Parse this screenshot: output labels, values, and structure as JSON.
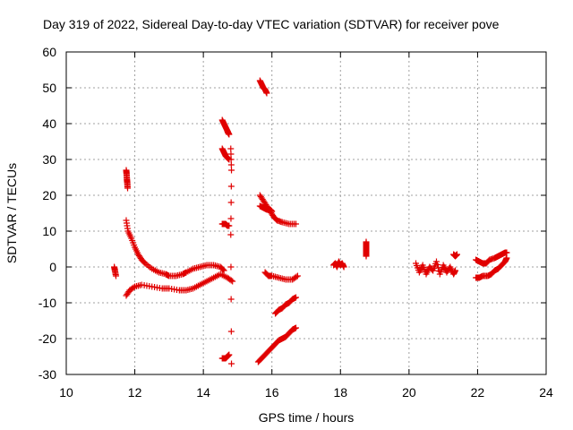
{
  "chart_data": {
    "type": "scatter",
    "title": "Day 319 of 2022, Sidereal Day-to-day VTEC variation (SDTVAR) for receiver pove",
    "xlabel": "GPS time / hours",
    "ylabel": "SDTVAR / TECUs",
    "xlim": [
      10,
      24
    ],
    "ylim": [
      -30,
      60
    ],
    "x_ticks": [
      10,
      12,
      14,
      16,
      18,
      20,
      22,
      24
    ],
    "y_ticks": [
      -30,
      -20,
      -10,
      0,
      10,
      20,
      30,
      40,
      50,
      60
    ],
    "grid": true,
    "marker": "plus",
    "color": "#e00000",
    "segments": [
      {
        "name": "isolated-11.4",
        "x": [
          11.4,
          11.42,
          11.45
        ],
        "y": [
          0,
          -1,
          -2.5
        ]
      },
      {
        "name": "outlier-11.75",
        "x": [
          11.75,
          11.76,
          11.77,
          11.78,
          11.79
        ],
        "y": [
          27,
          26,
          24.5,
          23.5,
          22
        ]
      },
      {
        "name": "upper-arc-12-15",
        "x": [
          11.75,
          11.8,
          11.9,
          12.0,
          12.1,
          12.2,
          12.3,
          12.5,
          12.7,
          12.9,
          13.0,
          13.2,
          13.4,
          13.5,
          13.7,
          13.9,
          14.1,
          14.3,
          14.5,
          14.6
        ],
        "y": [
          13,
          10,
          8,
          5.5,
          3.5,
          2,
          1,
          -0.5,
          -1.5,
          -2,
          -2.5,
          -2.5,
          -2,
          -1.5,
          -0.5,
          0,
          0.5,
          0.5,
          0,
          -1
        ]
      },
      {
        "name": "lower-arc-12-15",
        "x": [
          11.75,
          11.85,
          12.0,
          12.2,
          12.5,
          12.8,
          13.0,
          13.3,
          13.5,
          13.7,
          13.9,
          14.1,
          14.3,
          14.5,
          14.7,
          14.85
        ],
        "y": [
          -8,
          -6.5,
          -5.5,
          -5,
          -5.5,
          -6,
          -6,
          -6.5,
          -6.5,
          -6,
          -5,
          -4,
          -3,
          -2,
          -3,
          -4
        ]
      },
      {
        "name": "band-14.6-40",
        "x": [
          14.55,
          14.6,
          14.65,
          14.7,
          14.72,
          14.75
        ],
        "y": [
          41,
          40,
          39,
          38,
          37.5,
          37
        ]
      },
      {
        "name": "band-14.6-32",
        "x": [
          14.55,
          14.6,
          14.65,
          14.7,
          14.75
        ],
        "y": [
          33,
          32,
          31,
          30.5,
          30
        ]
      },
      {
        "name": "band-14.6-12",
        "x": [
          14.55,
          14.6,
          14.65,
          14.7,
          14.75
        ],
        "y": [
          12,
          12,
          12,
          11.5,
          11.5
        ]
      },
      {
        "name": "band-14.6-neg25",
        "x": [
          14.55,
          14.6,
          14.65,
          14.7,
          14.75
        ],
        "y": [
          -25.5,
          -25.5,
          -25.5,
          -25,
          -24.5
        ]
      },
      {
        "name": "isolated-14.8",
        "x": [
          14.8,
          14.82,
          14.8,
          14.82
        ],
        "y": [
          33,
          27,
          9,
          -27
        ]
      },
      {
        "name": "steep-15.7-52",
        "x": [
          15.65,
          15.7,
          15.75,
          15.8,
          15.85
        ],
        "y": [
          52,
          51,
          50,
          49.5,
          48.5
        ]
      },
      {
        "name": "decay-15.7-19",
        "x": [
          15.65,
          15.75,
          15.85,
          15.95,
          16.05,
          16.15,
          16.3,
          16.5,
          16.7
        ],
        "y": [
          20,
          18.5,
          17,
          15.5,
          14,
          13,
          12.5,
          12,
          12
        ]
      },
      {
        "name": "flat-15.7-16",
        "x": [
          15.65,
          15.75,
          15.85,
          15.95,
          16.0
        ],
        "y": [
          17,
          16.5,
          16,
          16,
          15.5
        ]
      },
      {
        "name": "dip-15.8-neg2",
        "x": [
          15.8,
          15.9,
          16.0,
          16.2,
          16.4,
          16.6,
          16.75
        ],
        "y": [
          -1.5,
          -2.5,
          -2.5,
          -3,
          -3.5,
          -3.5,
          -2.5
        ]
      },
      {
        "name": "rise-16.1-neg13",
        "x": [
          16.1,
          16.2,
          16.3,
          16.4,
          16.5,
          16.6,
          16.7
        ],
        "y": [
          -13,
          -12,
          -11.5,
          -10.5,
          -10,
          -9,
          -8.5
        ]
      },
      {
        "name": "rise-15.6-neg26",
        "x": [
          15.6,
          15.7,
          15.8,
          15.9,
          16.0,
          16.1,
          16.2,
          16.3,
          16.4,
          16.5,
          16.6,
          16.7
        ],
        "y": [
          -26.5,
          -25.5,
          -24.5,
          -23.5,
          -22.5,
          -21.5,
          -20.5,
          -20,
          -19.5,
          -18.5,
          -17.5,
          -17
        ]
      },
      {
        "name": "cluster-18",
        "x": [
          17.8,
          17.85,
          17.9,
          17.95,
          18.0,
          18.05,
          18.1
        ],
        "y": [
          0.5,
          1,
          0,
          1.5,
          0.5,
          1,
          0
        ]
      },
      {
        "name": "isolated-18.75",
        "x": [
          18.75,
          18.75,
          18.75,
          18.75,
          18.75
        ],
        "y": [
          7,
          6,
          5,
          4,
          3
        ]
      },
      {
        "name": "cluster-20.5-21.4",
        "x": [
          20.2,
          20.3,
          20.4,
          20.5,
          20.6,
          20.7,
          20.8,
          20.9,
          21.0,
          21.1,
          21.2,
          21.3,
          21.35
        ],
        "y": [
          1,
          -1.5,
          0.5,
          -2,
          0,
          -1,
          1.5,
          -2,
          0.5,
          -1.5,
          0,
          -2,
          -1
        ]
      },
      {
        "name": "cluster-21.35-3",
        "x": [
          21.3,
          21.35,
          21.4
        ],
        "y": [
          3.5,
          3,
          3.5
        ]
      },
      {
        "name": "arc-22-23",
        "x": [
          21.95,
          22.05,
          22.15,
          22.25,
          22.35,
          22.5,
          22.6,
          22.7,
          22.8,
          22.85
        ],
        "y": [
          2,
          1.5,
          1,
          1,
          2,
          2.5,
          3,
          3.5,
          4,
          4
        ]
      },
      {
        "name": "arc-22-23-low",
        "x": [
          21.95,
          22.05,
          22.15,
          22.3,
          22.4,
          22.5,
          22.6,
          22.7,
          22.8,
          22.85
        ],
        "y": [
          -3,
          -3,
          -2.5,
          -2.5,
          -2,
          -1,
          -0.5,
          0.5,
          1.5,
          2.5
        ]
      }
    ]
  }
}
